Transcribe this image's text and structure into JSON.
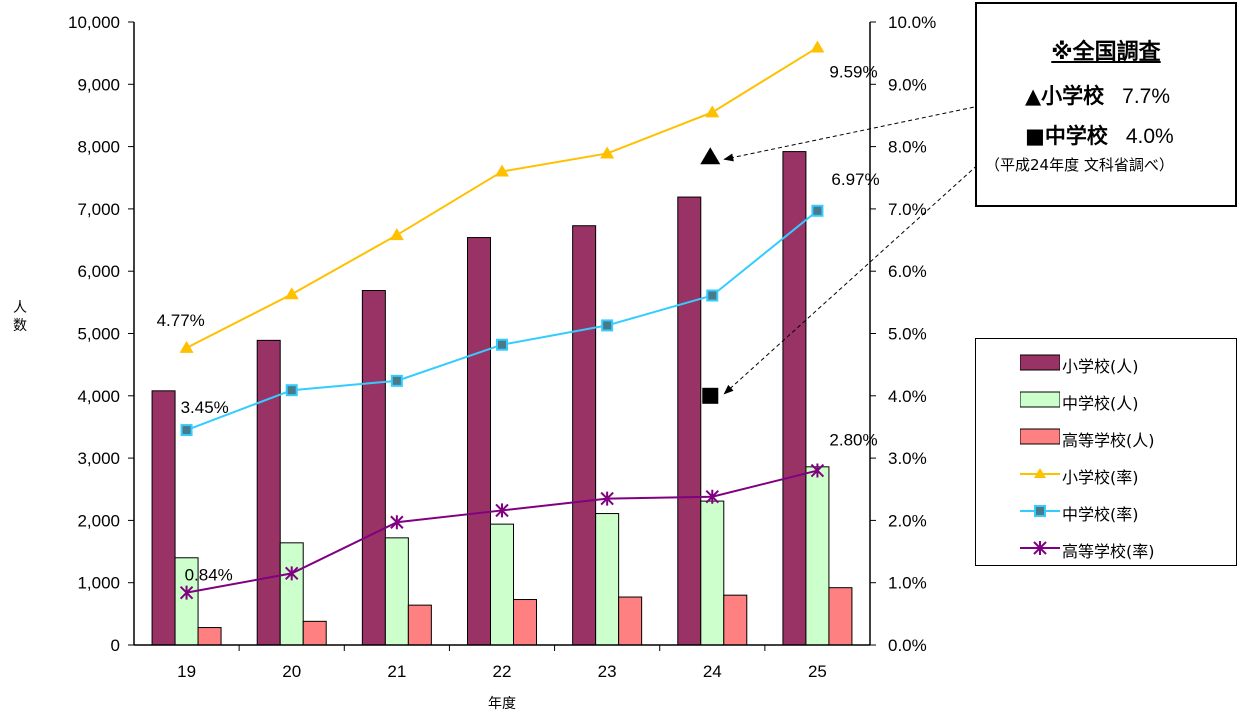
{
  "chart_data": {
    "type": "bar",
    "categories": [
      "19",
      "20",
      "21",
      "22",
      "23",
      "24",
      "25"
    ],
    "xlabel": "年度",
    "ylabel": "人数",
    "ylim": [
      0,
      10000
    ],
    "y2lim": [
      0,
      10.0
    ],
    "y_ticks": [
      "0",
      "1,000",
      "2,000",
      "3,000",
      "4,000",
      "5,000",
      "6,000",
      "7,000",
      "8,000",
      "9,000",
      "10,000"
    ],
    "y2_ticks": [
      "0.0%",
      "1.0%",
      "2.0%",
      "3.0%",
      "4.0%",
      "5.0%",
      "6.0%",
      "7.0%",
      "8.0%",
      "9.0%",
      "10.0%"
    ],
    "bar_series": [
      {
        "name": "小学校(人)",
        "color": "#993366",
        "values": [
          4080,
          4890,
          5690,
          6540,
          6730,
          7190,
          7920
        ]
      },
      {
        "name": "中学校(人)",
        "color": "#ccffcc",
        "values": [
          1400,
          1640,
          1720,
          1940,
          2110,
          2310,
          2860
        ]
      },
      {
        "name": "高等学校(人)",
        "color": "#ff8080",
        "values": [
          280,
          380,
          640,
          730,
          770,
          800,
          920
        ]
      }
    ],
    "line_series": [
      {
        "name": "小学校(率)",
        "color": "#ffc000",
        "marker": "triangle",
        "values": [
          4.77,
          5.63,
          6.58,
          7.6,
          7.89,
          8.55,
          9.59
        ]
      },
      {
        "name": "中学校(率)",
        "color": "#33ccff",
        "marker": "square",
        "values": [
          3.45,
          4.09,
          4.24,
          4.82,
          5.13,
          5.61,
          6.97
        ]
      },
      {
        "name": "高等学校(率)",
        "color": "#800080",
        "marker": "star",
        "values": [
          0.84,
          1.15,
          1.97,
          2.16,
          2.35,
          2.38,
          2.8
        ]
      }
    ],
    "data_labels": [
      {
        "series": 0,
        "index": 0,
        "text": "4.77%"
      },
      {
        "series": 0,
        "index": 6,
        "text": "9.59%"
      },
      {
        "series": 1,
        "index": 0,
        "text": "3.45%"
      },
      {
        "series": 1,
        "index": 6,
        "text": "6.97%"
      },
      {
        "series": 2,
        "index": 0,
        "text": "0.84%"
      },
      {
        "series": 2,
        "index": 6,
        "text": "2.80%"
      }
    ],
    "national_markers": [
      {
        "category": "24",
        "value": 7.7,
        "marker": "triangle"
      },
      {
        "category": "24",
        "value": 4.0,
        "marker": "square"
      }
    ],
    "legend_position": "right"
  },
  "note": {
    "title": "※全国調査",
    "items": [
      {
        "label": "▲小学校",
        "value": "7.7%"
      },
      {
        "label": "■中学校",
        "value": "4.0%"
      }
    ],
    "source": "（平成24年度  文科省調べ）"
  }
}
